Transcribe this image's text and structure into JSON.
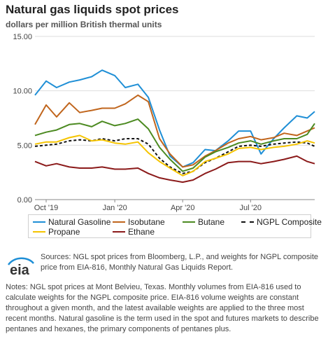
{
  "header": {
    "title": "Natural gas liquids spot prices",
    "subtitle": "dollars per million British thermal units"
  },
  "footer": {
    "sources": "Sources: NGL spot prices from Bloomberg, L.P., and weights for NGPL composite price from EIA-816, Monthly Natural Gas Liquids Report.",
    "notes": "Notes: NGL spot prices at Mont Belvieu, Texas. Monthly volumes from EIA-816 used to calculate weights for the NGPL composite price. EIA-816 volume weights are constant throughout a given month, and the latest available weights are applied to the three most recent months. Natural gasoline is the term used in the spot and futures markets to describe pentanes and hexanes, the primary components of pentanes plus.",
    "logo_text": "eia"
  },
  "chart_data": {
    "type": "line",
    "title": "Natural gas liquids spot prices",
    "subtitle": "dollars per million British thermal units",
    "x_start": "2019-09-16",
    "x_end": "2020-09-25",
    "xticks": [
      {
        "label": "Oct '19",
        "date": "2019-10-01"
      },
      {
        "label": "Jan '20",
        "date": "2020-01-01"
      },
      {
        "label": "Apr '20",
        "date": "2020-04-01"
      },
      {
        "label": "Jul '20",
        "date": "2020-07-01"
      }
    ],
    "ylim": [
      0,
      15
    ],
    "yticks": [
      "0.00",
      "5.00",
      "10.00",
      "15.00"
    ],
    "grid": true,
    "legend_position": "bottom",
    "x": [
      "2019-09-16",
      "2019-10-01",
      "2019-10-15",
      "2019-11-01",
      "2019-11-15",
      "2019-12-01",
      "2019-12-15",
      "2020-01-01",
      "2020-01-15",
      "2020-02-01",
      "2020-02-15",
      "2020-03-01",
      "2020-03-15",
      "2020-04-01",
      "2020-04-15",
      "2020-05-01",
      "2020-05-15",
      "2020-06-01",
      "2020-06-15",
      "2020-07-01",
      "2020-07-15",
      "2020-08-01",
      "2020-08-15",
      "2020-09-01",
      "2020-09-15",
      "2020-09-25"
    ],
    "series": [
      {
        "name": "Natural Gasoline",
        "color": "#1f8fd6",
        "values": [
          9.6,
          10.9,
          10.3,
          10.8,
          11.0,
          11.3,
          11.9,
          11.4,
          10.3,
          10.6,
          9.4,
          6.4,
          4.0,
          3.0,
          3.4,
          4.6,
          4.5,
          5.4,
          6.3,
          6.3,
          4.2,
          5.6,
          6.6,
          7.7,
          7.5,
          8.1
        ]
      },
      {
        "name": "Isobutane",
        "color": "#c0651c",
        "values": [
          6.9,
          8.7,
          7.6,
          8.9,
          8.0,
          8.2,
          8.4,
          8.4,
          8.8,
          9.6,
          9.0,
          5.6,
          4.2,
          3.0,
          3.2,
          4.0,
          4.5,
          5.2,
          5.6,
          5.8,
          5.5,
          5.7,
          6.1,
          5.9,
          6.3,
          6.6
        ]
      },
      {
        "name": "Butane",
        "color": "#4c8a21",
        "values": [
          5.9,
          6.2,
          6.4,
          6.9,
          7.0,
          6.7,
          7.2,
          6.8,
          7.0,
          7.4,
          6.5,
          4.8,
          3.7,
          2.6,
          2.9,
          3.9,
          4.4,
          4.8,
          5.2,
          5.4,
          5.1,
          5.4,
          5.6,
          5.6,
          6.0,
          7.0
        ]
      },
      {
        "name": "NGPL Composite",
        "color": "#111111",
        "dash": true,
        "values": [
          4.9,
          5.0,
          5.1,
          5.4,
          5.5,
          5.4,
          5.6,
          5.4,
          5.6,
          5.6,
          5.1,
          3.8,
          3.0,
          2.4,
          2.6,
          3.4,
          3.8,
          4.4,
          4.9,
          5.0,
          4.9,
          5.1,
          5.2,
          5.3,
          5.2,
          4.9
        ]
      },
      {
        "name": "Propane",
        "color": "#f5c400",
        "values": [
          5.1,
          5.3,
          5.3,
          5.7,
          5.9,
          5.4,
          5.5,
          5.2,
          5.1,
          5.3,
          4.3,
          3.5,
          2.9,
          2.2,
          2.6,
          3.5,
          3.8,
          4.2,
          4.7,
          4.8,
          4.6,
          4.8,
          4.9,
          5.1,
          5.4,
          5.2
        ]
      },
      {
        "name": "Ethane",
        "color": "#8b1a1a",
        "values": [
          3.5,
          3.1,
          3.3,
          3.0,
          2.9,
          2.9,
          3.0,
          2.8,
          2.8,
          2.9,
          2.4,
          2.0,
          1.8,
          1.6,
          1.8,
          2.4,
          2.8,
          3.4,
          3.5,
          3.5,
          3.3,
          3.5,
          3.7,
          4.0,
          3.5,
          3.3
        ]
      }
    ]
  }
}
